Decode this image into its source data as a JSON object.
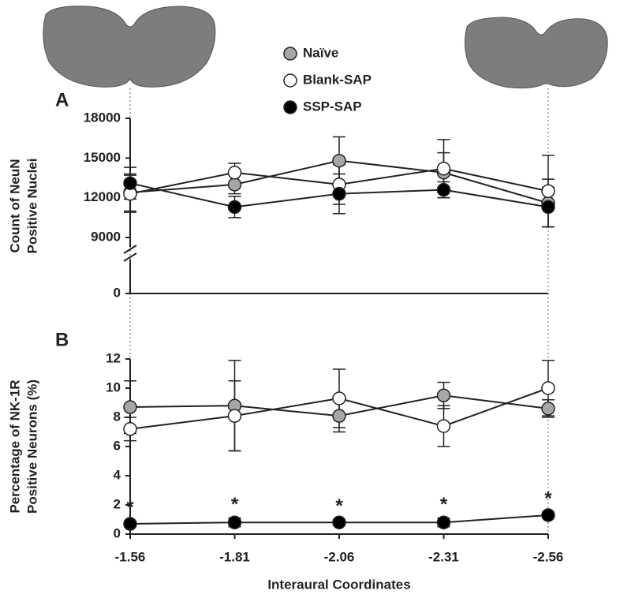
{
  "chart_data": [
    {
      "type": "line",
      "label": "A",
      "ylabel": [
        "Count of NeuN",
        "Positive Nuclei"
      ],
      "legend": "top",
      "x": [
        -1.56,
        -1.81,
        -2.06,
        -2.31,
        -2.56
      ],
      "xlim": [
        -1.56,
        -2.56
      ],
      "ylim": [
        0,
        18000
      ],
      "yticks": [
        0,
        9000,
        12000,
        15000,
        18000
      ],
      "axis_break": true,
      "series": [
        {
          "name": "Naïve",
          "color": "#a6a6a6",
          "values": [
            12400,
            13000,
            14800,
            13900,
            11600
          ],
          "errors": [
            1400,
            700,
            1800,
            1500,
            1800
          ]
        },
        {
          "name": "Blank-SAP",
          "color": "#ffffff",
          "values": [
            12300,
            13900,
            13000,
            14200,
            12500
          ],
          "errors": [
            1400,
            700,
            1500,
            2200,
            2700
          ]
        },
        {
          "name": "SSP-SAP",
          "color": "#000000",
          "values": [
            13100,
            11300,
            12300,
            12600,
            11300
          ],
          "errors": [
            1200,
            800,
            1500,
            600,
            1500
          ]
        }
      ]
    },
    {
      "type": "line",
      "label": "B",
      "ylabel": [
        "Percentage of NK-1R",
        "Positive Neurons (%)"
      ],
      "xlabel": "Interaural Coordinates",
      "x": [
        -1.56,
        -1.81,
        -2.06,
        -2.31,
        -2.56
      ],
      "xlim": [
        -1.56,
        -2.56
      ],
      "xticks": [
        -1.56,
        -1.81,
        -2.06,
        -2.31,
        -2.56
      ],
      "ylim": [
        0,
        12
      ],
      "yticks": [
        0,
        2,
        4,
        6,
        8,
        10,
        12
      ],
      "series": [
        {
          "color": "#a6a6a6",
          "values": [
            8.7,
            8.8,
            8.1,
            9.5,
            8.6
          ],
          "errors": [
            1.8,
            3.1,
            1.1,
            0.9,
            0.6
          ]
        },
        {
          "color": "#ffffff",
          "values": [
            7.2,
            8.1,
            9.3,
            7.4,
            10.0
          ],
          "errors": [
            0.8,
            2.4,
            2.0,
            1.4,
            1.9
          ]
        },
        {
          "color": "#000000",
          "values": [
            0.7,
            0.8,
            0.8,
            0.8,
            1.3
          ],
          "errors": [
            0.2,
            0.3,
            0.2,
            0.3,
            0.2
          ]
        }
      ],
      "annotations": [
        "*",
        "*",
        "*",
        "*",
        "*"
      ]
    }
  ]
}
